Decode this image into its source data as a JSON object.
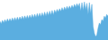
{
  "chart_data": {
    "type": "area",
    "values": [
      55,
      48,
      58,
      50,
      60,
      52,
      62,
      54,
      63,
      55,
      65,
      56,
      66,
      57,
      67,
      58,
      68,
      60,
      70,
      61,
      71,
      62,
      72,
      63,
      73,
      64,
      75,
      65,
      76,
      66,
      78,
      67,
      79,
      68,
      80,
      69,
      82,
      70,
      83,
      72,
      85,
      73,
      87,
      74,
      88,
      80,
      90,
      82,
      92,
      84,
      95,
      86,
      97,
      88,
      99,
      90,
      100,
      92,
      102,
      94,
      105,
      96,
      107,
      98,
      108,
      85,
      110,
      87,
      112,
      89,
      108,
      75,
      110,
      78,
      105,
      40,
      20,
      10,
      15,
      35,
      50,
      45,
      60,
      55,
      70,
      65,
      75,
      70
    ],
    "color": "#5baee0",
    "ylim": [
      0,
      117.6
    ],
    "tick_labels": false
  }
}
